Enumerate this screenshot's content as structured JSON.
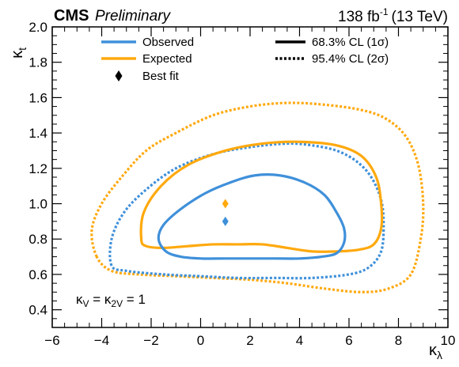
{
  "chart_data": {
    "type": "contour",
    "header": {
      "experiment": "CMS",
      "status": "Preliminary",
      "lumi_value": "138 fb",
      "lumi_exp": "-1",
      "energy": "(13 TeV)"
    },
    "x_axis": {
      "label_main": "κ",
      "label_sub": "λ",
      "range": [
        -6,
        10
      ],
      "ticks": [
        -6,
        -4,
        -2,
        0,
        2,
        4,
        6,
        8,
        10
      ],
      "tick_labels": [
        "−6",
        "−4",
        "−2",
        "0",
        "2",
        "4",
        "6",
        "8",
        "10"
      ]
    },
    "y_axis": {
      "label_main": "κ",
      "label_sub": "t",
      "range": [
        0.3,
        2.0
      ],
      "ticks": [
        0.4,
        0.6,
        0.8,
        1.0,
        1.2,
        1.4,
        1.6,
        1.8,
        2.0
      ],
      "tick_labels": [
        "0.4",
        "0.6",
        "0.8",
        "1.0",
        "1.2",
        "1.4",
        "1.6",
        "1.8",
        "2.0"
      ]
    },
    "annotation": {
      "k1": "κ",
      "s1": "V",
      "eq1": " = ",
      "k2": "κ",
      "s2": "2V",
      "eq2": " = 1"
    },
    "legend": [
      {
        "label": "Observed",
        "kind": "line",
        "color": "#3f90da"
      },
      {
        "label": "Expected",
        "kind": "line",
        "color": "#ffa90e"
      },
      {
        "label": "Best fit",
        "kind": "diamond",
        "color": "#000000"
      },
      {
        "label": "68.3% CL (1σ)",
        "kind": "solid"
      },
      {
        "label": "95.4% CL (2σ)",
        "kind": "dotted"
      }
    ],
    "colors": {
      "observed": "#3f90da",
      "expected": "#ffa90e"
    },
    "best_fit": [
      {
        "series": "expected",
        "x": 1.0,
        "y": 1.0
      },
      {
        "series": "observed",
        "x": 1.0,
        "y": 0.9
      }
    ],
    "contours": [
      {
        "name": "expected-2sigma",
        "series": "expected",
        "cl": "2sigma",
        "points": [
          [
            -4.2,
            0.7
          ],
          [
            -4.4,
            0.85
          ],
          [
            -4.0,
            1.0
          ],
          [
            -3.2,
            1.15
          ],
          [
            -2.2,
            1.3
          ],
          [
            -1.0,
            1.4
          ],
          [
            0.5,
            1.5
          ],
          [
            2.0,
            1.55
          ],
          [
            3.5,
            1.57
          ],
          [
            5.0,
            1.56
          ],
          [
            6.5,
            1.53
          ],
          [
            7.5,
            1.48
          ],
          [
            8.3,
            1.38
          ],
          [
            8.8,
            1.22
          ],
          [
            9.0,
            1.0
          ],
          [
            8.9,
            0.8
          ],
          [
            8.5,
            0.6
          ],
          [
            7.6,
            0.52
          ],
          [
            6.5,
            0.5
          ],
          [
            5.0,
            0.52
          ],
          [
            3.5,
            0.55
          ],
          [
            2.0,
            0.57
          ],
          [
            0.5,
            0.58
          ],
          [
            -1.0,
            0.59
          ],
          [
            -2.5,
            0.6
          ],
          [
            -3.6,
            0.62
          ]
        ]
      },
      {
        "name": "observed-2sigma",
        "series": "observed",
        "cl": "2sigma",
        "points": [
          [
            -3.6,
            0.65
          ],
          [
            -3.6,
            0.8
          ],
          [
            -3.1,
            0.95
          ],
          [
            -2.2,
            1.08
          ],
          [
            -1.0,
            1.2
          ],
          [
            0.5,
            1.28
          ],
          [
            2.0,
            1.32
          ],
          [
            3.5,
            1.34
          ],
          [
            4.5,
            1.33
          ],
          [
            5.5,
            1.3
          ],
          [
            6.3,
            1.24
          ],
          [
            6.9,
            1.15
          ],
          [
            7.3,
            1.02
          ],
          [
            7.4,
            0.88
          ],
          [
            7.3,
            0.73
          ],
          [
            6.8,
            0.64
          ],
          [
            6.0,
            0.6
          ],
          [
            4.5,
            0.58
          ],
          [
            3.0,
            0.58
          ],
          [
            1.5,
            0.58
          ],
          [
            0.0,
            0.59
          ],
          [
            -1.5,
            0.6
          ],
          [
            -3.0,
            0.62
          ]
        ]
      },
      {
        "name": "expected-1sigma",
        "series": "expected",
        "cl": "1sigma",
        "points": [
          [
            -2.4,
            0.8
          ],
          [
            -2.3,
            0.95
          ],
          [
            -1.6,
            1.1
          ],
          [
            -0.5,
            1.22
          ],
          [
            1.0,
            1.3
          ],
          [
            2.5,
            1.34
          ],
          [
            4.0,
            1.35
          ],
          [
            5.5,
            1.33
          ],
          [
            6.5,
            1.27
          ],
          [
            7.1,
            1.15
          ],
          [
            7.3,
            1.0
          ],
          [
            7.3,
            0.86
          ],
          [
            7.0,
            0.77
          ],
          [
            6.4,
            0.74
          ],
          [
            5.5,
            0.73
          ],
          [
            4.5,
            0.73
          ],
          [
            3.5,
            0.75
          ],
          [
            2.5,
            0.77
          ],
          [
            1.5,
            0.77
          ],
          [
            0.5,
            0.77
          ],
          [
            -0.5,
            0.76
          ],
          [
            -1.5,
            0.75
          ],
          [
            -2.2,
            0.76
          ]
        ]
      },
      {
        "name": "observed-1sigma",
        "series": "observed",
        "cl": "1sigma",
        "points": [
          [
            -1.7,
            0.8
          ],
          [
            -1.5,
            0.88
          ],
          [
            -0.8,
            0.97
          ],
          [
            0.2,
            1.06
          ],
          [
            1.2,
            1.12
          ],
          [
            2.2,
            1.16
          ],
          [
            3.2,
            1.16
          ],
          [
            4.2,
            1.12
          ],
          [
            5.0,
            1.05
          ],
          [
            5.5,
            0.95
          ],
          [
            5.8,
            0.86
          ],
          [
            5.8,
            0.78
          ],
          [
            5.5,
            0.72
          ],
          [
            4.9,
            0.7
          ],
          [
            4.0,
            0.69
          ],
          [
            3.0,
            0.69
          ],
          [
            2.0,
            0.69
          ],
          [
            1.0,
            0.69
          ],
          [
            0.0,
            0.69
          ],
          [
            -0.8,
            0.7
          ],
          [
            -1.4,
            0.73
          ]
        ]
      }
    ]
  }
}
